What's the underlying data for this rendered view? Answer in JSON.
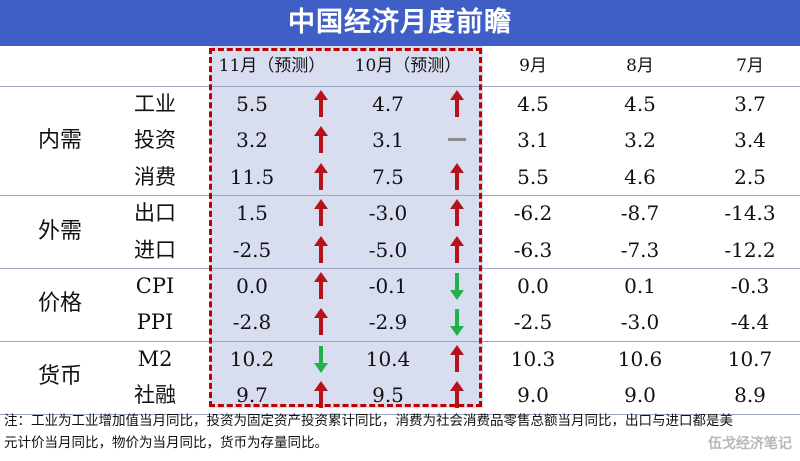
{
  "title": "中国经济月度前瞻",
  "headers": [
    "11月（预测）",
    "10月（预测）",
    "9月",
    "8月",
    "7月"
  ],
  "categories": [
    {
      "name": "内需",
      "rows": [
        0,
        1,
        2
      ]
    },
    {
      "name": "外需",
      "rows": [
        3,
        4
      ]
    },
    {
      "name": "价格",
      "rows": [
        5,
        6
      ]
    },
    {
      "name": "货币",
      "rows": [
        7,
        8
      ]
    }
  ],
  "rows": [
    {
      "label": "工业",
      "nov": "5.5",
      "nov_dir": "up",
      "oct": "4.7",
      "oct_dir": "up",
      "sep": "4.5",
      "aug": "4.5",
      "jul": "3.7"
    },
    {
      "label": "投资",
      "nov": "3.2",
      "nov_dir": "up",
      "oct": "3.1",
      "oct_dir": "flat",
      "sep": "3.1",
      "aug": "3.2",
      "jul": "3.4"
    },
    {
      "label": "消费",
      "nov": "11.5",
      "nov_dir": "up",
      "oct": "7.5",
      "oct_dir": "up",
      "sep": "5.5",
      "aug": "4.6",
      "jul": "2.5"
    },
    {
      "label": "出口",
      "nov": "1.5",
      "nov_dir": "up",
      "oct": "-3.0",
      "oct_dir": "up",
      "sep": "-6.2",
      "aug": "-8.7",
      "jul": "-14.3"
    },
    {
      "label": "进口",
      "nov": "-2.5",
      "nov_dir": "up",
      "oct": "-5.0",
      "oct_dir": "up",
      "sep": "-6.3",
      "aug": "-7.3",
      "jul": "-12.2"
    },
    {
      "label": "CPI",
      "nov": "0.0",
      "nov_dir": "up",
      "oct": "-0.1",
      "oct_dir": "down",
      "sep": "0.0",
      "aug": "0.1",
      "jul": "-0.3"
    },
    {
      "label": "PPI",
      "nov": "-2.8",
      "nov_dir": "up",
      "oct": "-2.9",
      "oct_dir": "down",
      "sep": "-2.5",
      "aug": "-3.0",
      "jul": "-4.4"
    },
    {
      "label": "M2",
      "nov": "10.2",
      "nov_dir": "down",
      "oct": "10.4",
      "oct_dir": "up",
      "sep": "10.3",
      "aug": "10.6",
      "jul": "10.7"
    },
    {
      "label": "社融",
      "nov": "9.7",
      "nov_dir": "up",
      "oct": "9.5",
      "oct_dir": "up",
      "sep": "9.0",
      "aug": "9.0",
      "jul": "8.9"
    }
  ],
  "colors": {
    "up": "#b5121b",
    "down": "#22b14c",
    "flat": "#8c8c8c",
    "title_bg": "#3f5fc7"
  },
  "note": "注：工业为工业增加值当月同比，投资为固定资产投资累计同比，消费为社会消费品零售总额当月同比，出口与进口都是美元计价当月同比，物价为当月同比，货币为存量同比。",
  "watermark": "伍戈经济笔记"
}
